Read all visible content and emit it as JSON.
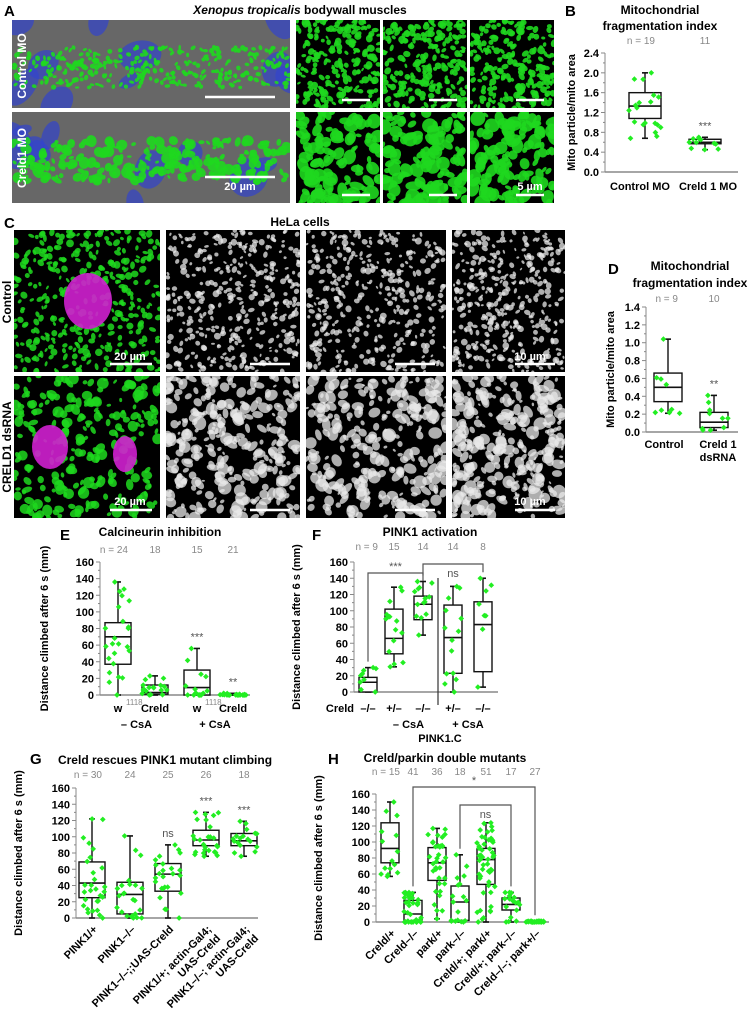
{
  "panel_a": {
    "label": "A",
    "title_italic": "Xenopus tropicalis",
    "title_rest": " bodywall muscles",
    "rows": [
      "Control MO",
      "Creld1 MO"
    ],
    "scale_left": "20 µm",
    "scale_right": "5 µm"
  },
  "panel_c": {
    "label": "C",
    "title": "HeLa cells",
    "rows": [
      "Control",
      "CRELD1 dsRNA"
    ],
    "scale_left": "20 µm",
    "scale_right": "10 µm"
  },
  "colors": {
    "points": "#22ee22",
    "mito_green": "#1fd81f",
    "nucleus_blue": "#3344cc",
    "nucleus_magenta": "#d020d0"
  },
  "chart_data": [
    {
      "id": "B",
      "type": "box",
      "label": "B",
      "title_lines": [
        "Mitochondrial",
        "fragmentation index"
      ],
      "ylabel": "Mito particle/mito area",
      "ylim": [
        0,
        2.4
      ],
      "ytick_step": 0.4,
      "tick_decimals": 1,
      "n_labels": [
        "n = 19",
        "11"
      ],
      "categories": [
        [
          "Control MO"
        ],
        [
          "Creld 1 MO"
        ]
      ],
      "boxes": [
        {
          "min": 0.68,
          "q1": 1.08,
          "median": 1.33,
          "q3": 1.6,
          "max": 2.0
        },
        {
          "min": 0.45,
          "q1": 0.57,
          "median": 0.6,
          "q3": 0.66,
          "max": 0.7
        }
      ],
      "significance": [
        "",
        "***"
      ]
    },
    {
      "id": "D",
      "type": "box",
      "label": "D",
      "title_lines": [
        "Mitochondrial",
        "fragmentation index"
      ],
      "ylabel": "Mito particle/mito area",
      "ylim": [
        0,
        1.4
      ],
      "ytick_step": 0.2,
      "tick_decimals": 1,
      "n_labels": [
        "n = 9",
        "10"
      ],
      "categories": [
        [
          "Control"
        ],
        [
          "Creld 1",
          "dsRNA"
        ]
      ],
      "boxes": [
        {
          "min": 0.21,
          "q1": 0.34,
          "median": 0.5,
          "q3": 0.66,
          "max": 1.04
        },
        {
          "min": 0.02,
          "q1": 0.05,
          "median": 0.11,
          "q3": 0.22,
          "max": 0.41
        }
      ],
      "significance": [
        "",
        "**"
      ]
    },
    {
      "id": "E",
      "type": "box",
      "label": "E",
      "title_lines": [
        "Calcineurin inhibition"
      ],
      "ylabel": "Distance climbed after 6 s (mm)",
      "ylim": [
        0,
        160
      ],
      "ytick_step": 20,
      "tick_decimals": 0,
      "n_labels": [
        "n = 24",
        "18",
        "15",
        "21"
      ],
      "categories": [
        [
          "w"
        ],
        [
          "Creld"
        ],
        [
          "w"
        ],
        [
          "Creld"
        ]
      ],
      "category_superscripts": [
        "1118",
        "",
        "1118",
        ""
      ],
      "groups": [
        "– CsA",
        "+ CsA"
      ],
      "boxes": [
        {
          "min": 0,
          "q1": 37,
          "median": 70,
          "q3": 87,
          "max": 136
        },
        {
          "min": 0,
          "q1": 1,
          "median": 3,
          "q3": 12,
          "max": 23
        },
        {
          "min": 0,
          "q1": 0,
          "median": 9,
          "q3": 30,
          "max": 56
        },
        {
          "min": 0,
          "q1": 0,
          "median": 0,
          "q3": 1,
          "max": 2
        }
      ],
      "significance": [
        "",
        "",
        "***",
        "**"
      ]
    },
    {
      "id": "F",
      "type": "box",
      "label": "F",
      "title_lines": [
        "PINK1 activation"
      ],
      "ylabel": "Distance climbed after 6 s (mm)",
      "ylim": [
        0,
        160
      ],
      "ytick_step": 20,
      "tick_decimals": 0,
      "n_labels": [
        "n = 9",
        "15",
        "14",
        "14",
        "8"
      ],
      "row_label": "Creld",
      "categories": [
        [
          "–/–"
        ],
        [
          "+/–"
        ],
        [
          "–/–"
        ],
        [
          "+/–"
        ],
        [
          "–/–"
        ]
      ],
      "groups": [
        "– CsA",
        "+ CsA"
      ],
      "group_caption": "PINK1.C",
      "boxes": [
        {
          "min": 0,
          "q1": 0,
          "median": 12,
          "q3": 18,
          "max": 30
        },
        {
          "min": 31,
          "q1": 47,
          "median": 66,
          "q3": 102,
          "max": 129
        },
        {
          "min": 70,
          "q1": 89,
          "median": 108,
          "q3": 118,
          "max": 136
        },
        {
          "min": 0,
          "q1": 23,
          "median": 67,
          "q3": 107,
          "max": 130
        },
        {
          "min": 6,
          "q1": 25,
          "median": 83,
          "q3": 111,
          "max": 140
        }
      ],
      "brackets": [
        {
          "from": 0,
          "to": 2,
          "label": "***"
        },
        {
          "from": 2,
          "to": 4,
          "label": "ns"
        }
      ]
    },
    {
      "id": "G",
      "type": "box",
      "label": "G",
      "title_lines": [
        "Creld rescues PINK1 mutant climbing"
      ],
      "ylabel": "Distance climbed after 6 s (mm)",
      "ylim": [
        0,
        160
      ],
      "ytick_step": 20,
      "tick_decimals": 0,
      "n_labels": [
        "n = 30",
        "24",
        "25",
        "26",
        "18"
      ],
      "categories": [
        [
          "PINK1/+"
        ],
        [
          "PINK1–/–"
        ],
        [
          "PINK1–/–;;UAS-Creld"
        ],
        [
          "PINK1/+; actin-Gal4;",
          "UAS-Creld"
        ],
        [
          "PINK1–/–; actin-Gal4;",
          "UAS-Creld"
        ]
      ],
      "boxes": [
        {
          "min": 0,
          "q1": 25,
          "median": 43,
          "q3": 69,
          "max": 122
        },
        {
          "min": 0,
          "q1": 5,
          "median": 29,
          "q3": 44,
          "max": 101
        },
        {
          "min": 0,
          "q1": 33,
          "median": 54,
          "q3": 67,
          "max": 90
        },
        {
          "min": 76,
          "q1": 89,
          "median": 96,
          "q3": 108,
          "max": 130
        },
        {
          "min": 76,
          "q1": 89,
          "median": 95,
          "q3": 104,
          "max": 119
        }
      ],
      "significance": [
        "",
        "",
        "ns",
        "***",
        "***"
      ]
    },
    {
      "id": "H",
      "type": "box",
      "label": "H",
      "title_lines": [
        "Creld/parkin double mutants"
      ],
      "ylabel": "Distance climbed after 6 s (mm)",
      "ylim": [
        0,
        160
      ],
      "ytick_step": 20,
      "tick_decimals": 0,
      "n_labels": [
        "n = 15",
        "41",
        "36",
        "18",
        "51",
        "17",
        "27"
      ],
      "categories": [
        [
          "Creld/+"
        ],
        [
          "Creld–/–"
        ],
        [
          "park/+"
        ],
        [
          "park–/–"
        ],
        [
          "Creld/+; park/+"
        ],
        [
          "Creld/+; park–/–"
        ],
        [
          "Creld–/–; park+/–"
        ]
      ],
      "boxes": [
        {
          "min": 57,
          "q1": 74,
          "median": 92,
          "q3": 124,
          "max": 150
        },
        {
          "min": 0,
          "q1": 0,
          "median": 10,
          "q3": 27,
          "max": 37
        },
        {
          "min": 4,
          "q1": 52,
          "median": 74,
          "q3": 93,
          "max": 117
        },
        {
          "min": 0,
          "q1": 2,
          "median": 25,
          "q3": 45,
          "max": 84
        },
        {
          "min": 0,
          "q1": 47,
          "median": 78,
          "q3": 92,
          "max": 124
        },
        {
          "min": 0,
          "q1": 15,
          "median": 22,
          "q3": 30,
          "max": 37
        },
        {
          "min": 0,
          "q1": 0,
          "median": 0,
          "q3": 1,
          "max": 1
        }
      ],
      "brackets": [
        {
          "from": 1,
          "to": 6,
          "label": "*"
        },
        {
          "from": 3,
          "to": 5,
          "label": "ns"
        }
      ]
    }
  ]
}
